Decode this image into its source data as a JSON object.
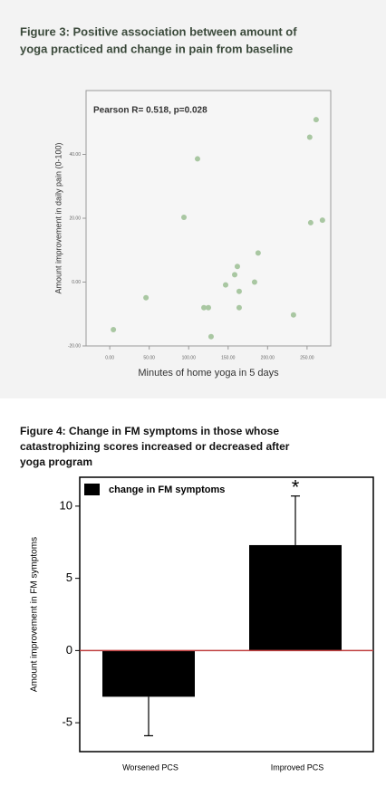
{
  "chart_data": [
    {
      "type": "scatter",
      "title": [
        "Figure 3: Positive association between amount of",
        "yoga practiced and change in pain from baseline"
      ],
      "annotation": "Pearson R= 0.518, p=0.028",
      "xlabel": "Minutes of home  yoga in 5 days",
      "ylabel": "Amount improvement  in daily pain (0-100)",
      "x": [
        4.6,
        45.9,
        94,
        111.2,
        119.3,
        125,
        128.4,
        146.8,
        158.3,
        161.7,
        164,
        164,
        183.5,
        188,
        232.8,
        253.4,
        254.6,
        261.5,
        269.5
      ],
      "values": [
        -14.9,
        -4.9,
        20.3,
        38.6,
        -8,
        -8,
        -17.1,
        -0.9,
        2.3,
        4.9,
        -2.9,
        -8,
        0,
        9.1,
        -10.3,
        45.4,
        18.6,
        50.9,
        19.4
      ],
      "color": "#a9c7a2",
      "xlim": [
        -30,
        280
      ],
      "ylim": [
        -20,
        60
      ],
      "xticks": [
        {
          "value": 0,
          "label": "0.00"
        },
        {
          "value": 50,
          "label": "50.00"
        },
        {
          "value": 100,
          "label": "100.00"
        },
        {
          "value": 150,
          "label": "150.00"
        },
        {
          "value": 200,
          "label": "200.00"
        },
        {
          "value": 250,
          "label": "250.00"
        }
      ],
      "yticks": [
        {
          "value": -20,
          "label": "-20.00"
        },
        {
          "value": 0,
          "label": "0.00"
        },
        {
          "value": 20,
          "label": "20.00"
        },
        {
          "value": 40,
          "label": "40.00"
        }
      ]
    },
    {
      "type": "bar",
      "title": [
        "Figure 4: Change in FM symptoms in those whose",
        "catastrophizing scores increased or decreased after",
        "yoga program"
      ],
      "ylabel": "Amount improvement in FM symptoms",
      "categories": [
        "Worsened PCS",
        "Improved PCS"
      ],
      "series": [
        {
          "name": "change in FM symptoms",
          "color": "#000000",
          "values": [
            -3.2,
            7.3
          ],
          "errors": [
            2.7,
            3.4
          ]
        }
      ],
      "annotation": "*",
      "ylim": [
        -7,
        12
      ],
      "yticks": [
        -5,
        0,
        5,
        10
      ]
    }
  ]
}
